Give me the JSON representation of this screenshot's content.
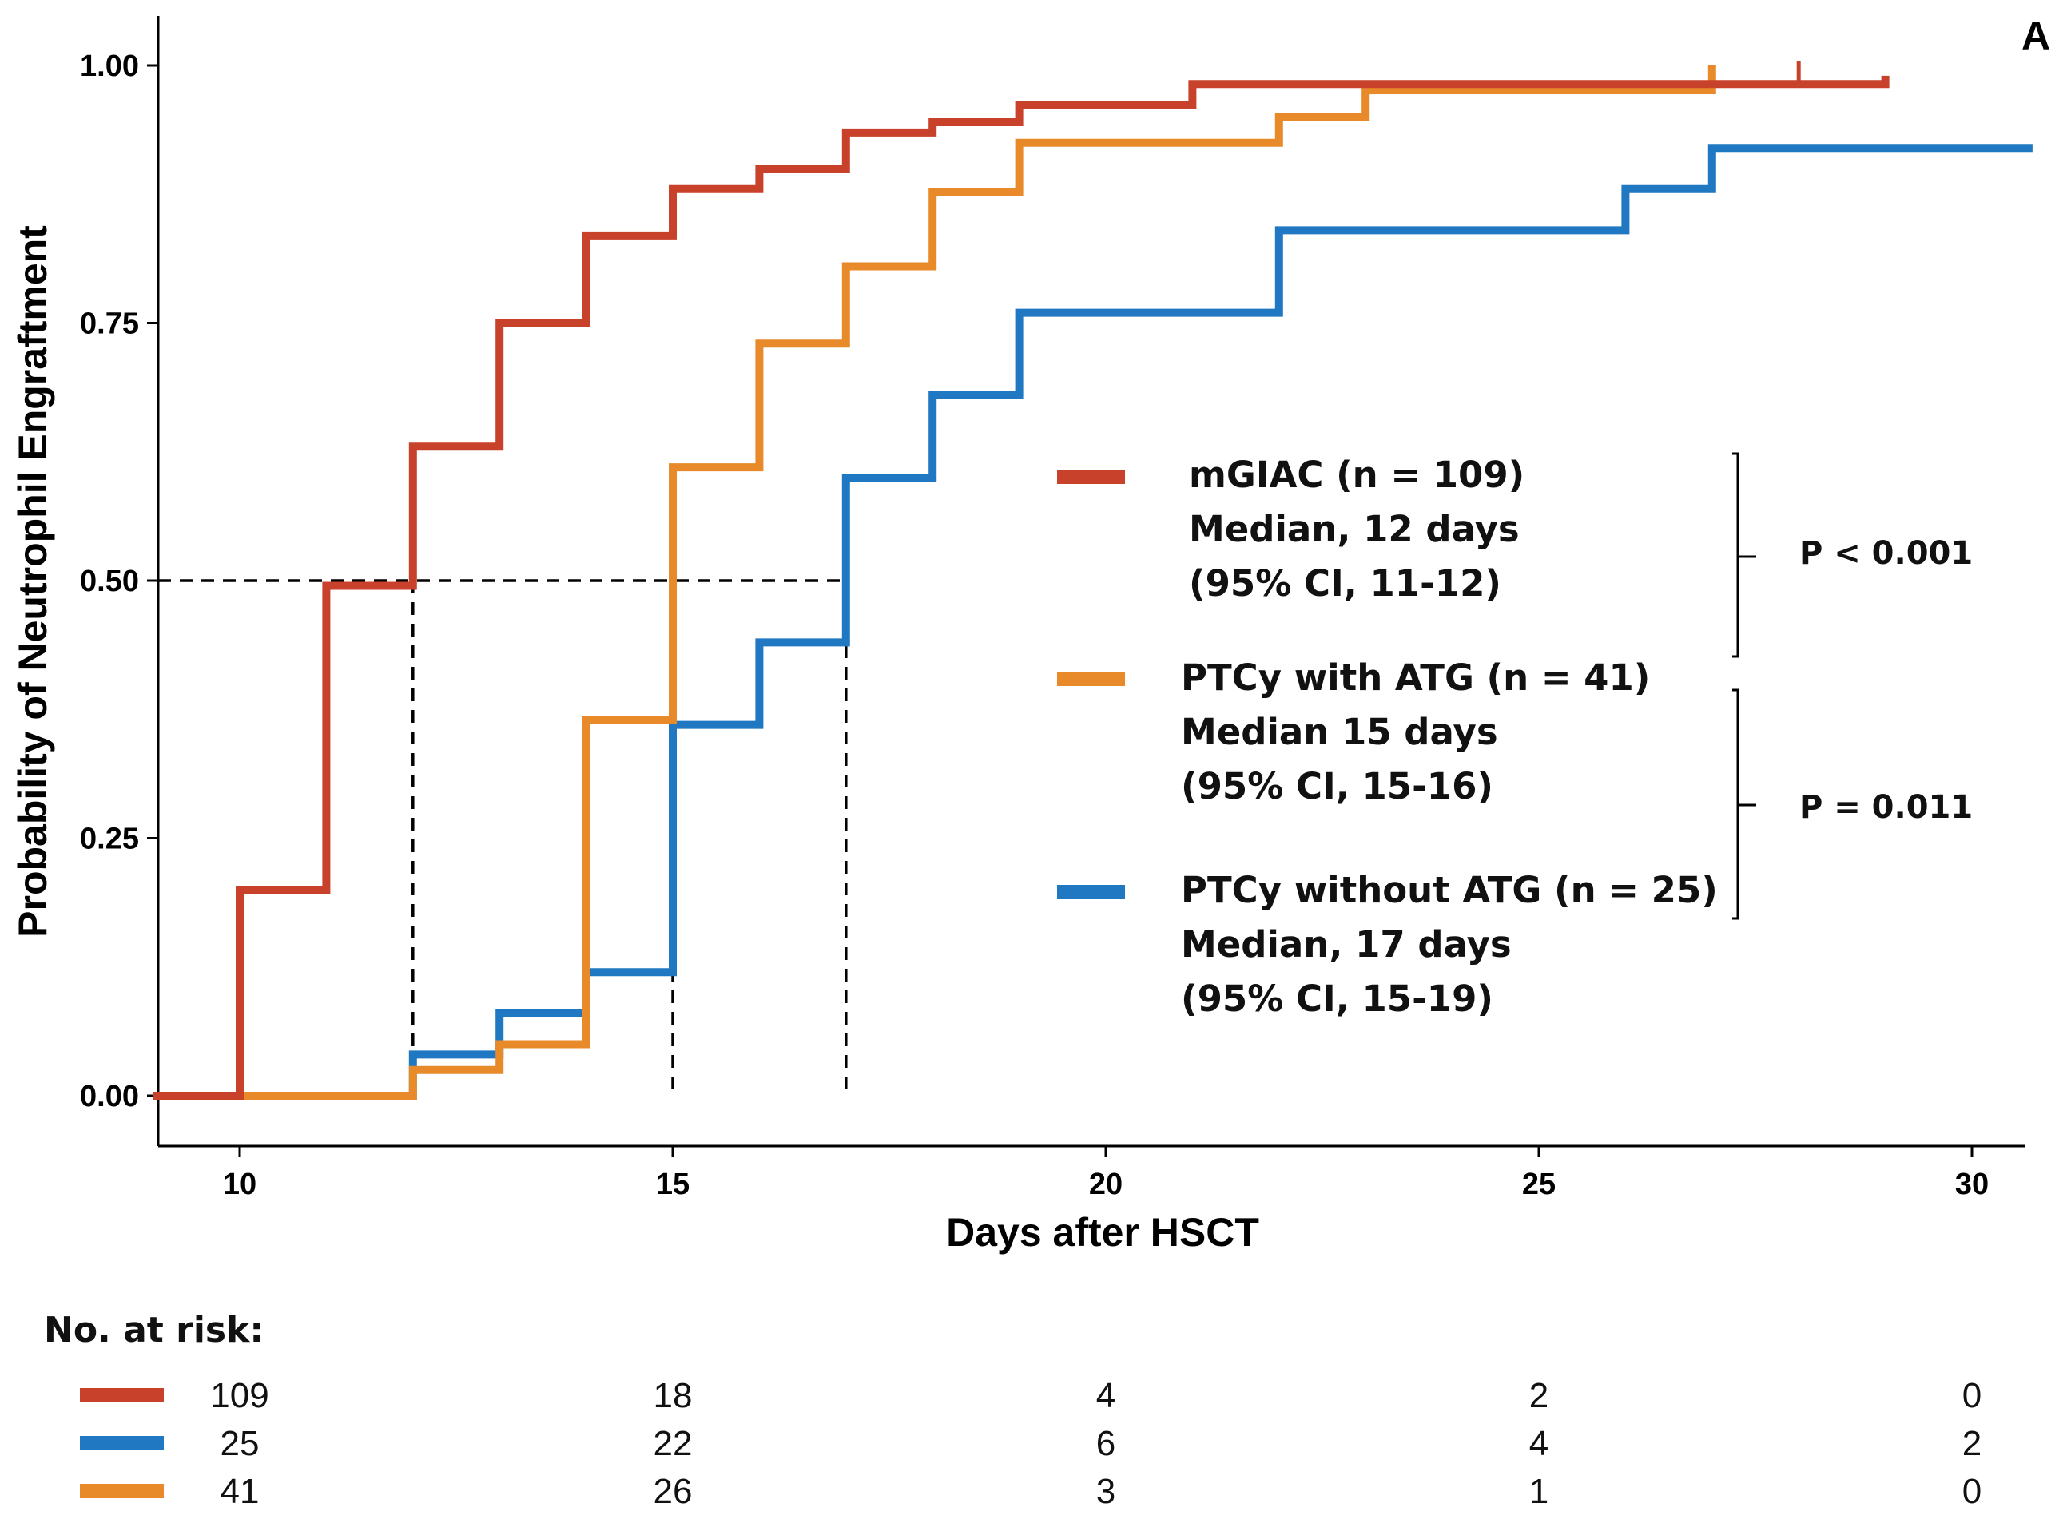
{
  "colors": {
    "mgiac": "#C8412A",
    "ptcy_atg": "#E88A2A",
    "ptcy_no_atg": "#1F78C1"
  },
  "chart_data": {
    "type": "line",
    "subtype": "kaplan-meier-cumulative-incidence",
    "panel_label": "A",
    "title": "",
    "xlabel": "Days after HSCT",
    "ylabel": "Probability of Neutrophil Engraftment",
    "xlim": [
      9,
      30.7
    ],
    "ylim": [
      -0.05,
      1.05
    ],
    "x_ticks": [
      10,
      15,
      20,
      25,
      30
    ],
    "y_ticks": [
      0.0,
      0.25,
      0.5,
      0.75,
      1.0
    ],
    "x_tick_labels": [
      "10",
      "15",
      "20",
      "25",
      "30"
    ],
    "y_tick_labels": [
      "0.00",
      "0.25",
      "0.50",
      "0.75",
      "1.00"
    ],
    "series": [
      {
        "key": "mgiac",
        "name": "mGIAC",
        "steps": [
          [
            9,
            0
          ],
          [
            10,
            0.2
          ],
          [
            11,
            0.495
          ],
          [
            12,
            0.63
          ],
          [
            13,
            0.75
          ],
          [
            14,
            0.835
          ],
          [
            15,
            0.88
          ],
          [
            16,
            0.9
          ],
          [
            17,
            0.935
          ],
          [
            18,
            0.945
          ],
          [
            19,
            0.962
          ],
          [
            21,
            0.982
          ],
          [
            29,
            0.99
          ]
        ],
        "end_x": 29,
        "censor_marks": [
          28
        ]
      },
      {
        "key": "ptcy_atg",
        "name": "PTCy with ATG",
        "steps": [
          [
            9,
            0
          ],
          [
            12,
            0.025
          ],
          [
            13,
            0.05
          ],
          [
            14,
            0.365
          ],
          [
            15,
            0.61
          ],
          [
            16,
            0.73
          ],
          [
            17,
            0.805
          ],
          [
            18,
            0.877
          ],
          [
            19,
            0.925
          ],
          [
            22,
            0.95
          ],
          [
            23,
            0.976
          ],
          [
            27,
            1.0
          ]
        ],
        "end_x": 27
      },
      {
        "key": "ptcy_no_atg",
        "name": "PTCy without ATG",
        "steps": [
          [
            9,
            0
          ],
          [
            12,
            0.04
          ],
          [
            13,
            0.08
          ],
          [
            14,
            0.12
          ],
          [
            15,
            0.36
          ],
          [
            16,
            0.44
          ],
          [
            17,
            0.6
          ],
          [
            18,
            0.68
          ],
          [
            19,
            0.76
          ],
          [
            22,
            0.84
          ],
          [
            26,
            0.88
          ],
          [
            27,
            0.92
          ]
        ],
        "end_x": 30.7
      }
    ],
    "median_lines": [
      12,
      15,
      17
    ],
    "median_level": 0.5,
    "legend": [
      {
        "key": "mgiac",
        "lines": [
          "mGIAC (n = 109)",
          "Median, 12 days",
          "(95% CI, 11-12)"
        ]
      },
      {
        "key": "ptcy_atg",
        "lines": [
          "PTCy with ATG (n = 41)",
          "Median 15 days",
          "(95% CI, 15-16)"
        ]
      },
      {
        "key": "ptcy_no_atg",
        "lines": [
          "PTCy without ATG (n = 25)",
          "Median, 17 days",
          "(95% CI, 15-19)"
        ]
      }
    ],
    "p_values": [
      "P < 0.001",
      "P = 0.011"
    ],
    "risk_table": {
      "title": "No. at risk:",
      "rows": [
        {
          "key": "mgiac",
          "values": [
            "109",
            "18",
            "4",
            "2",
            "0"
          ]
        },
        {
          "key": "ptcy_no_atg",
          "values": [
            "25",
            "22",
            "6",
            "4",
            "2"
          ]
        },
        {
          "key": "ptcy_atg",
          "values": [
            "41",
            "26",
            "3",
            "1",
            "0"
          ]
        }
      ]
    }
  }
}
